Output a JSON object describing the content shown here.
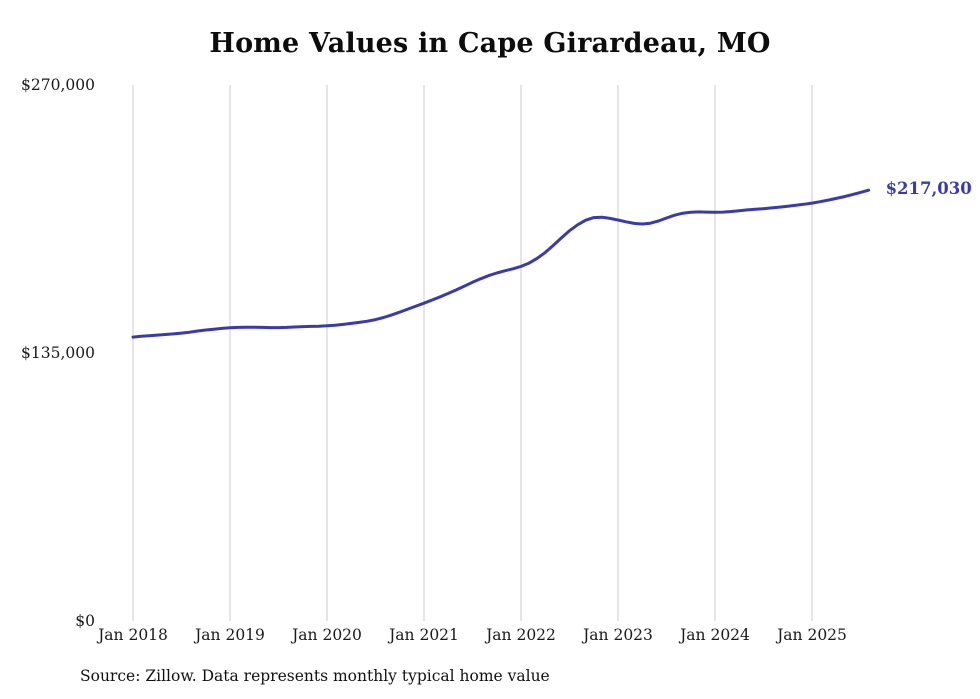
{
  "chart_data": {
    "type": "line",
    "title": "Home Values in Cape Girardeau, MO",
    "source": "Source: Zillow. Data represents monthly typical home value",
    "ylim": [
      0,
      270000
    ],
    "y_ticks": [
      {
        "value": 0,
        "label": "$0"
      },
      {
        "value": 135000,
        "label": "$135,000"
      },
      {
        "value": 270000,
        "label": "$270,000"
      }
    ],
    "x_ticks": [
      "Jan 2018",
      "Jan 2019",
      "Jan 2020",
      "Jan 2021",
      "Jan 2022",
      "Jan 2023",
      "Jan 2024",
      "Jan 2025"
    ],
    "start_month": "Jan 2018",
    "months_per_tick": 12,
    "latest_value": 217030,
    "latest_label": "$217,030",
    "line_color": "#3a3aad",
    "grid_color": "#cccccc",
    "tick_text_color": "#1a1a1a",
    "legend_position": "none",
    "grid": "vertical-only",
    "series": [
      {
        "name": "Monthly typical home value",
        "values": [
          143000,
          143400,
          143700,
          144000,
          144300,
          144600,
          145000,
          145500,
          146100,
          146600,
          147000,
          147400,
          147700,
          147900,
          148000,
          148000,
          147900,
          147800,
          147800,
          147900,
          148100,
          148300,
          148400,
          148500,
          148700,
          149000,
          149400,
          149900,
          150400,
          151000,
          151800,
          152900,
          154200,
          155600,
          157100,
          158600,
          160100,
          161700,
          163300,
          165000,
          166800,
          168700,
          170600,
          172400,
          174000,
          175300,
          176400,
          177400,
          178600,
          180300,
          182700,
          185700,
          189200,
          193000,
          196600,
          199600,
          201900,
          203200,
          203400,
          202800,
          202000,
          201100,
          200300,
          200000,
          200400,
          201500,
          203000,
          204400,
          205400,
          205900,
          206100,
          206000,
          205900,
          206000,
          206300,
          206700,
          207100,
          207400,
          207700,
          208100,
          208500,
          208900,
          209400,
          209900,
          210500,
          211200,
          212000,
          212900,
          213800,
          214800,
          215900,
          217030
        ]
      }
    ]
  }
}
